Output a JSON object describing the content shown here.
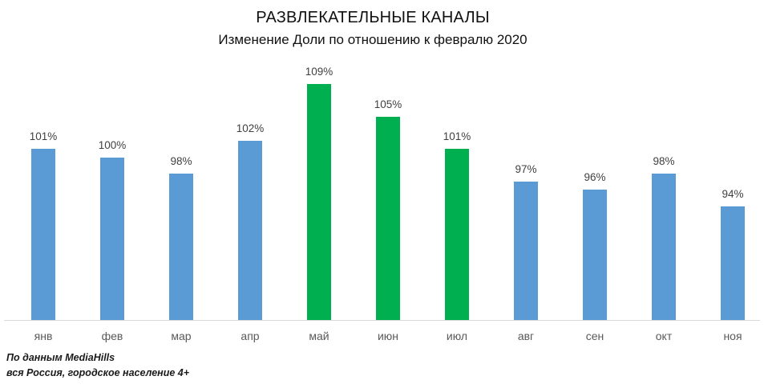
{
  "header": {
    "title": "РАЗВЛЕКАТЕЛЬНЫЕ КАНАЛЫ",
    "subtitle": "Изменение Доли по отношению к февралю 2020"
  },
  "chart_data": {
    "type": "bar",
    "title": "РАЗВЛЕКАТЕЛЬНЫЕ КАНАЛЫ",
    "subtitle": "Изменение Доли по отношению к февралю 2020",
    "categories": [
      "янв",
      "фев",
      "мар",
      "апр",
      "май",
      "июн",
      "июл",
      "авг",
      "сен",
      "окт",
      "ноя"
    ],
    "values": [
      101,
      100,
      98,
      102,
      109,
      105,
      101,
      97,
      96,
      98,
      94
    ],
    "data_labels": [
      "101%",
      "100%",
      "98%",
      "102%",
      "109%",
      "105%",
      "101%",
      "97%",
      "96%",
      "98%",
      "94%"
    ],
    "bar_colors": [
      "#5B9BD5",
      "#5B9BD5",
      "#5B9BD5",
      "#5B9BD5",
      "#00B050",
      "#00B050",
      "#00B050",
      "#5B9BD5",
      "#5B9BD5",
      "#5B9BD5",
      "#5B9BD5"
    ],
    "highlighted_categories": [
      "май",
      "июн",
      "июл"
    ],
    "xlabel": "",
    "ylabel": "",
    "ylim": [
      80,
      110
    ],
    "gridlines": false,
    "legend_position": "none",
    "value_suffix": "%"
  },
  "footer": {
    "line1": "По данным MediaHills",
    "line2": "вся Россия, городское население 4+"
  },
  "colors": {
    "bar_default": "#5B9BD5",
    "bar_highlight": "#00B050",
    "data_label_text": "#404040",
    "axis_label_text": "#595959",
    "axis_line": "#D9D9D9",
    "title_text": "#111111"
  }
}
